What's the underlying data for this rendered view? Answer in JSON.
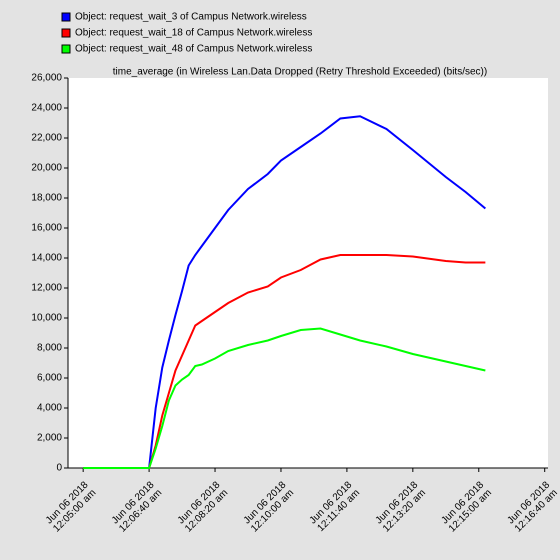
{
  "chart_data": {
    "type": "line",
    "title": "time_average (in Wireless Lan.Data Dropped (Retry Threshold Exceeded) (bits/sec))",
    "x": [
      0,
      100,
      110,
      120,
      130,
      140,
      150,
      160,
      170,
      180,
      200,
      220,
      250,
      280,
      300,
      330,
      360,
      390,
      420,
      460,
      500,
      550,
      580,
      610
    ],
    "series": [
      {
        "name": "Object: request_wait_3 of Campus Network.wireless",
        "color": "#0000ff",
        "values": [
          0,
          0,
          4000,
          6700,
          8500,
          10200,
          11800,
          13500,
          14200,
          14800,
          16000,
          17200,
          18600,
          19600,
          20500,
          21400,
          22300,
          23300,
          23450,
          22600,
          21200,
          19400,
          18400,
          17300
        ]
      },
      {
        "name": "Object: request_wait_18 of Campus Network.wireless",
        "color": "#ff0000",
        "values": [
          0,
          0,
          1500,
          3500,
          5000,
          6500,
          7500,
          8500,
          9500,
          9800,
          10400,
          11000,
          11700,
          12100,
          12700,
          13200,
          13900,
          14200,
          14200,
          14200,
          14100,
          13800,
          13700,
          13700
        ]
      },
      {
        "name": "Object: request_wait_48 of Campus Network.wireless",
        "color": "#00ff00",
        "values": [
          0,
          0,
          1300,
          2800,
          4500,
          5500,
          5900,
          6200,
          6800,
          6900,
          7300,
          7800,
          8200,
          8500,
          8800,
          9200,
          9300,
          8900,
          8500,
          8100,
          7600,
          7100,
          6800,
          6500
        ]
      }
    ],
    "xlim": [
      -23,
      705
    ],
    "xticks": [
      {
        "value": 0,
        "label": "Jun 06 2018\n12:05:00 am"
      },
      {
        "value": 100,
        "label": "Jun 06 2018\n12:06:40 am"
      },
      {
        "value": 200,
        "label": "Jun 06 2018\n12:08:20 am"
      },
      {
        "value": 300,
        "label": "Jun 06 2018\n12:10:00 am"
      },
      {
        "value": 400,
        "label": "Jun 06 2018\n12:11:40 am"
      },
      {
        "value": 500,
        "label": "Jun 06 2018\n12:13:20 am"
      },
      {
        "value": 600,
        "label": "Jun 06 2018\n12:15:00 am"
      },
      {
        "value": 700,
        "label": "Jun 06 2018\n12:16:40 am"
      }
    ],
    "ylim": [
      0,
      26000
    ],
    "yticks": [
      {
        "value": 0,
        "label": "0"
      },
      {
        "value": 2000,
        "label": "2,000"
      },
      {
        "value": 4000,
        "label": "4,000"
      },
      {
        "value": 6000,
        "label": "6,000"
      },
      {
        "value": 8000,
        "label": "8,000"
      },
      {
        "value": 10000,
        "label": "10,000"
      },
      {
        "value": 12000,
        "label": "12,000"
      },
      {
        "value": 14000,
        "label": "14,000"
      },
      {
        "value": 16000,
        "label": "16,000"
      },
      {
        "value": 18000,
        "label": "18,000"
      },
      {
        "value": 20000,
        "label": "20,000"
      },
      {
        "value": 22000,
        "label": "22,000"
      },
      {
        "value": 24000,
        "label": "24,000"
      },
      {
        "value": 26000,
        "label": "26,000"
      }
    ],
    "grid": false
  }
}
